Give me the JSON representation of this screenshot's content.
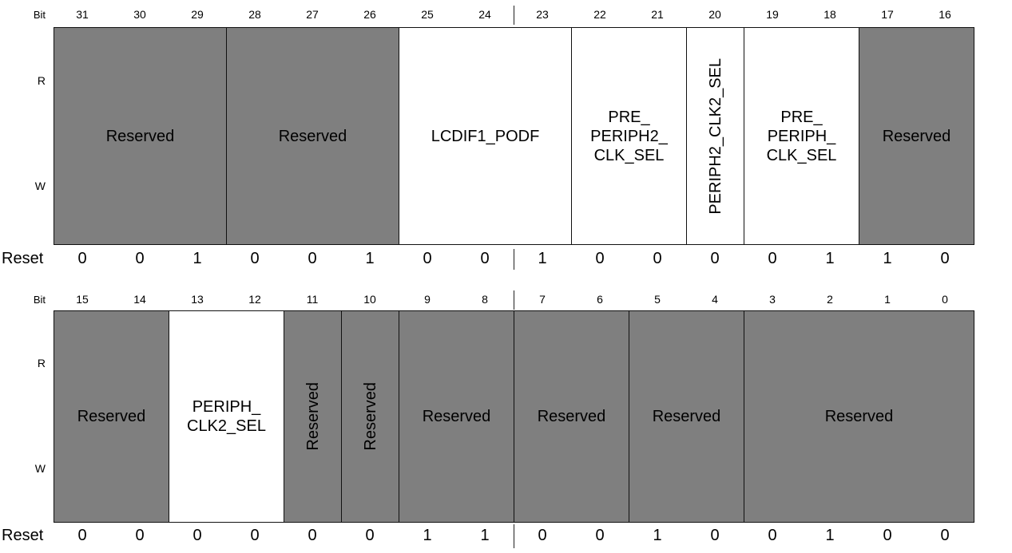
{
  "labels": {
    "bit": "Bit",
    "read": "R",
    "write": "W",
    "reset": "Reset"
  },
  "upper": {
    "bits": [
      "31",
      "30",
      "29",
      "28",
      "27",
      "26",
      "25",
      "24",
      "23",
      "22",
      "21",
      "20",
      "19",
      "18",
      "17",
      "16"
    ],
    "fields": [
      {
        "text": "Reserved",
        "span": 3,
        "reserved": true,
        "vertical": false
      },
      {
        "text": "Reserved",
        "span": 3,
        "reserved": true,
        "vertical": false
      },
      {
        "text": "LCDIF1_PODF",
        "span": 3,
        "reserved": false,
        "vertical": false
      },
      {
        "text": "PRE_\nPERIPH2_\nCLK_SEL",
        "span": 2,
        "reserved": false,
        "vertical": false
      },
      {
        "text": "PERIPH2_CLK2_SEL",
        "span": 1,
        "reserved": false,
        "vertical": true
      },
      {
        "text": "PRE_\nPERIPH_\nCLK_SEL",
        "span": 2,
        "reserved": false,
        "vertical": false
      },
      {
        "text": "Reserved",
        "span": 2,
        "reserved": true,
        "vertical": false
      }
    ],
    "reset": [
      "0",
      "0",
      "1",
      "0",
      "0",
      "1",
      "0",
      "0",
      "1",
      "0",
      "0",
      "0",
      "0",
      "1",
      "1",
      "0"
    ]
  },
  "lower": {
    "bits": [
      "15",
      "14",
      "13",
      "12",
      "11",
      "10",
      "9",
      "8",
      "7",
      "6",
      "5",
      "4",
      "3",
      "2",
      "1",
      "0"
    ],
    "fields": [
      {
        "text": "Reserved",
        "span": 2,
        "reserved": true,
        "vertical": false
      },
      {
        "text": "PERIPH_\nCLK2_SEL",
        "span": 2,
        "reserved": false,
        "vertical": false
      },
      {
        "text": "Reserved",
        "span": 1,
        "reserved": true,
        "vertical": true
      },
      {
        "text": "Reserved",
        "span": 1,
        "reserved": true,
        "vertical": true
      },
      {
        "text": "Reserved",
        "span": 2,
        "reserved": true,
        "vertical": false
      },
      {
        "text": "Reserved",
        "span": 2,
        "reserved": true,
        "vertical": false
      },
      {
        "text": "Reserved",
        "span": 2,
        "reserved": true,
        "vertical": false
      },
      {
        "text": "Reserved",
        "span": 4,
        "reserved": true,
        "vertical": false
      }
    ],
    "reset": [
      "0",
      "0",
      "0",
      "0",
      "0",
      "0",
      "1",
      "1",
      "0",
      "0",
      "1",
      "0",
      "0",
      "1",
      "0",
      "0"
    ]
  }
}
